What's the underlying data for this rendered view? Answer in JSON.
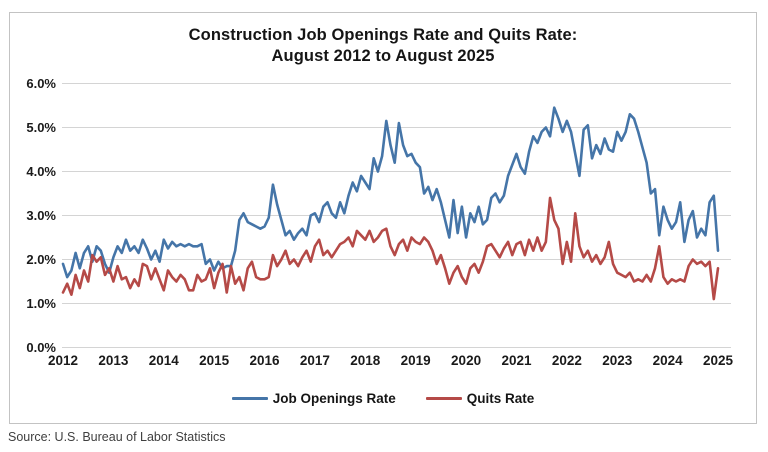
{
  "title_line1": "Construction Job Openings Rate and Quits Rate:",
  "title_line2": "August 2012 to August 2025",
  "source": "Source: U.S. Bureau of Labor Statistics",
  "colors": {
    "openings_line": "#4575A8",
    "quits_line": "#B54A47",
    "gridline": "#d4d4d4",
    "tick_text": "#1a1a1a"
  },
  "chart_data": {
    "type": "line",
    "title": "Construction Job Openings Rate and Quits Rate: August 2012 to August 2025",
    "x_start": "Aug 2012",
    "x_end": "Aug 2025",
    "x_tick_labels": [
      "2012",
      "2013",
      "2014",
      "2015",
      "2016",
      "2017",
      "2018",
      "2019",
      "2020",
      "2021",
      "2022",
      "2023",
      "2024",
      "2025"
    ],
    "x_tick_interval_months": 12,
    "y_tick_labels": [
      "0.0%",
      "1.0%",
      "2.0%",
      "3.0%",
      "4.0%",
      "5.0%",
      "6.0%"
    ],
    "ylim": [
      0,
      6
    ],
    "y_unit": "percent",
    "grid": true,
    "legend_position": "bottom",
    "series": [
      {
        "name": "Job Openings Rate",
        "color": "#4575A8",
        "values": [
          1.9,
          1.6,
          1.75,
          2.15,
          1.8,
          2.15,
          2.3,
          1.95,
          2.3,
          2.2,
          1.9,
          1.7,
          2.05,
          2.3,
          2.15,
          2.45,
          2.2,
          2.3,
          2.15,
          2.45,
          2.25,
          2.0,
          2.2,
          1.95,
          2.45,
          2.25,
          2.4,
          2.3,
          2.35,
          2.3,
          2.35,
          2.3,
          2.3,
          2.35,
          1.9,
          2.0,
          1.75,
          1.95,
          1.8,
          1.85,
          1.85,
          2.2,
          2.9,
          3.05,
          2.85,
          2.8,
          2.75,
          2.7,
          2.75,
          2.95,
          3.7,
          3.25,
          2.9,
          2.55,
          2.65,
          2.45,
          2.6,
          2.7,
          2.55,
          3.0,
          3.05,
          2.85,
          3.2,
          3.3,
          3.05,
          2.95,
          3.3,
          3.05,
          3.45,
          3.75,
          3.55,
          3.9,
          3.75,
          3.6,
          4.3,
          4.0,
          4.35,
          5.15,
          4.6,
          4.2,
          5.1,
          4.6,
          4.35,
          4.4,
          4.2,
          4.1,
          3.5,
          3.65,
          3.35,
          3.6,
          3.3,
          2.9,
          2.5,
          3.35,
          2.6,
          3.2,
          2.5,
          3.05,
          2.85,
          3.2,
          2.8,
          2.9,
          3.4,
          3.5,
          3.3,
          3.45,
          3.9,
          4.15,
          4.4,
          4.1,
          3.95,
          4.45,
          4.8,
          4.65,
          4.9,
          5.0,
          4.8,
          5.45,
          5.2,
          4.9,
          5.15,
          4.9,
          4.4,
          3.9,
          4.95,
          5.05,
          4.3,
          4.6,
          4.4,
          4.75,
          4.5,
          4.45,
          4.9,
          4.7,
          4.9,
          5.3,
          5.2,
          4.9,
          4.55,
          4.2,
          3.5,
          3.6,
          2.55,
          3.2,
          2.9,
          2.7,
          2.85,
          3.3,
          2.4,
          2.9,
          3.1,
          2.5,
          2.7,
          2.55,
          3.3,
          3.45,
          2.2
        ]
      },
      {
        "name": "Quits Rate",
        "color": "#B54A47",
        "values": [
          1.25,
          1.45,
          1.2,
          1.65,
          1.35,
          1.75,
          1.5,
          2.1,
          1.95,
          2.05,
          1.65,
          1.8,
          1.5,
          1.85,
          1.55,
          1.6,
          1.35,
          1.55,
          1.4,
          1.9,
          1.85,
          1.55,
          1.8,
          1.55,
          1.3,
          1.75,
          1.6,
          1.5,
          1.65,
          1.55,
          1.3,
          1.3,
          1.65,
          1.5,
          1.55,
          1.8,
          1.35,
          1.7,
          1.9,
          1.25,
          1.85,
          1.45,
          1.6,
          1.3,
          1.8,
          1.95,
          1.6,
          1.55,
          1.55,
          1.6,
          2.1,
          1.85,
          2.0,
          2.2,
          1.9,
          2.0,
          1.85,
          2.05,
          2.2,
          1.95,
          2.3,
          2.45,
          2.1,
          2.2,
          2.05,
          2.2,
          2.35,
          2.4,
          2.5,
          2.3,
          2.65,
          2.55,
          2.45,
          2.65,
          2.4,
          2.5,
          2.65,
          2.7,
          2.3,
          2.1,
          2.35,
          2.45,
          2.2,
          2.5,
          2.4,
          2.35,
          2.5,
          2.4,
          2.2,
          1.9,
          2.1,
          1.8,
          1.45,
          1.7,
          1.85,
          1.6,
          1.45,
          1.8,
          1.9,
          1.7,
          1.95,
          2.3,
          2.35,
          2.2,
          2.05,
          2.25,
          2.4,
          2.1,
          2.35,
          2.4,
          2.1,
          2.45,
          2.2,
          2.5,
          2.2,
          2.4,
          3.4,
          2.9,
          2.7,
          1.9,
          2.4,
          1.95,
          3.05,
          2.3,
          2.05,
          2.2,
          1.95,
          2.1,
          1.9,
          2.05,
          2.4,
          1.9,
          1.7,
          1.65,
          1.6,
          1.7,
          1.5,
          1.55,
          1.5,
          1.65,
          1.5,
          1.8,
          2.3,
          1.6,
          1.45,
          1.55,
          1.5,
          1.55,
          1.5,
          1.85,
          2.0,
          1.9,
          1.95,
          1.85,
          1.95,
          1.1,
          1.8
        ]
      }
    ]
  }
}
